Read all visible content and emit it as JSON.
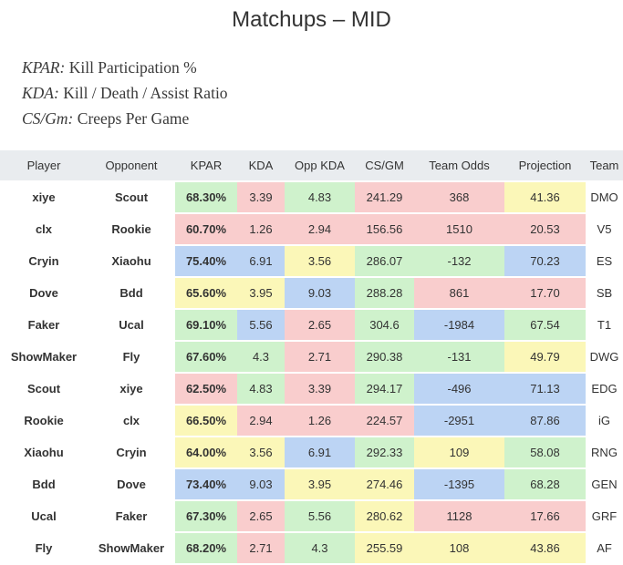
{
  "page": {
    "title": "Matchups – MID"
  },
  "legend": [
    {
      "abbr": "KPAR:",
      "text": " Kill Participation %"
    },
    {
      "abbr": "KDA:",
      "text": " Kill / Death / Assist Ratio"
    },
    {
      "abbr": "CS/Gm:",
      "text": " Creeps Per Game"
    }
  ],
  "colors": {
    "green": "#cff2cc",
    "red": "#f9cdcd",
    "yellow": "#fbf7b8",
    "blue": "#bcd4f4",
    "header": "#e9ecef"
  },
  "table": {
    "headers": [
      "Player",
      "Opponent",
      "KPAR",
      "KDA",
      "Opp KDA",
      "CS/GM",
      "Team Odds",
      "Projection",
      "Team"
    ],
    "rows": [
      {
        "player": "xiye",
        "opponent": "Scout",
        "kpar": "68.30%",
        "kda": "3.39",
        "opp_kda": "4.83",
        "csgm": "241.29",
        "team_odds": "368",
        "projection": "41.36",
        "team": "DMO",
        "colors": {
          "kpar": "green",
          "kda": "red",
          "opp_kda": "green",
          "csgm": "red",
          "team_odds": "red",
          "projection": "yellow"
        }
      },
      {
        "player": "clx",
        "opponent": "Rookie",
        "kpar": "60.70%",
        "kda": "1.26",
        "opp_kda": "2.94",
        "csgm": "156.56",
        "team_odds": "1510",
        "projection": "20.53",
        "team": "V5",
        "colors": {
          "kpar": "red",
          "kda": "red",
          "opp_kda": "red",
          "csgm": "red",
          "team_odds": "red",
          "projection": "red"
        }
      },
      {
        "player": "Cryin",
        "opponent": "Xiaohu",
        "kpar": "75.40%",
        "kda": "6.91",
        "opp_kda": "3.56",
        "csgm": "286.07",
        "team_odds": "-132",
        "projection": "70.23",
        "team": "ES",
        "colors": {
          "kpar": "blue",
          "kda": "blue",
          "opp_kda": "yellow",
          "csgm": "green",
          "team_odds": "green",
          "projection": "blue"
        }
      },
      {
        "player": "Dove",
        "opponent": "Bdd",
        "kpar": "65.60%",
        "kda": "3.95",
        "opp_kda": "9.03",
        "csgm": "288.28",
        "team_odds": "861",
        "projection": "17.70",
        "team": "SB",
        "colors": {
          "kpar": "yellow",
          "kda": "yellow",
          "opp_kda": "blue",
          "csgm": "green",
          "team_odds": "red",
          "projection": "red"
        }
      },
      {
        "player": "Faker",
        "opponent": "Ucal",
        "kpar": "69.10%",
        "kda": "5.56",
        "opp_kda": "2.65",
        "csgm": "304.6",
        "team_odds": "-1984",
        "projection": "67.54",
        "team": "T1",
        "colors": {
          "kpar": "green",
          "kda": "blue",
          "opp_kda": "red",
          "csgm": "green",
          "team_odds": "blue",
          "projection": "green"
        }
      },
      {
        "player": "ShowMaker",
        "opponent": "Fly",
        "kpar": "67.60%",
        "kda": "4.3",
        "opp_kda": "2.71",
        "csgm": "290.38",
        "team_odds": "-131",
        "projection": "49.79",
        "team": "DWG",
        "colors": {
          "kpar": "green",
          "kda": "green",
          "opp_kda": "red",
          "csgm": "green",
          "team_odds": "green",
          "projection": "yellow"
        }
      },
      {
        "player": "Scout",
        "opponent": "xiye",
        "kpar": "62.50%",
        "kda": "4.83",
        "opp_kda": "3.39",
        "csgm": "294.17",
        "team_odds": "-496",
        "projection": "71.13",
        "team": "EDG",
        "colors": {
          "kpar": "red",
          "kda": "green",
          "opp_kda": "red",
          "csgm": "green",
          "team_odds": "blue",
          "projection": "blue"
        }
      },
      {
        "player": "Rookie",
        "opponent": "clx",
        "kpar": "66.50%",
        "kda": "2.94",
        "opp_kda": "1.26",
        "csgm": "224.57",
        "team_odds": "-2951",
        "projection": "87.86",
        "team": "iG",
        "colors": {
          "kpar": "yellow",
          "kda": "red",
          "opp_kda": "red",
          "csgm": "red",
          "team_odds": "blue",
          "projection": "blue"
        }
      },
      {
        "player": "Xiaohu",
        "opponent": "Cryin",
        "kpar": "64.00%",
        "kda": "3.56",
        "opp_kda": "6.91",
        "csgm": "292.33",
        "team_odds": "109",
        "projection": "58.08",
        "team": "RNG",
        "colors": {
          "kpar": "yellow",
          "kda": "yellow",
          "opp_kda": "blue",
          "csgm": "green",
          "team_odds": "yellow",
          "projection": "green"
        }
      },
      {
        "player": "Bdd",
        "opponent": "Dove",
        "kpar": "73.40%",
        "kda": "9.03",
        "opp_kda": "3.95",
        "csgm": "274.46",
        "team_odds": "-1395",
        "projection": "68.28",
        "team": "GEN",
        "colors": {
          "kpar": "blue",
          "kda": "blue",
          "opp_kda": "yellow",
          "csgm": "yellow",
          "team_odds": "blue",
          "projection": "green"
        }
      },
      {
        "player": "Ucal",
        "opponent": "Faker",
        "kpar": "67.30%",
        "kda": "2.65",
        "opp_kda": "5.56",
        "csgm": "280.62",
        "team_odds": "1128",
        "projection": "17.66",
        "team": "GRF",
        "colors": {
          "kpar": "green",
          "kda": "red",
          "opp_kda": "green",
          "csgm": "yellow",
          "team_odds": "red",
          "projection": "red"
        }
      },
      {
        "player": "Fly",
        "opponent": "ShowMaker",
        "kpar": "68.20%",
        "kda": "2.71",
        "opp_kda": "4.3",
        "csgm": "255.59",
        "team_odds": "108",
        "projection": "43.86",
        "team": "AF",
        "colors": {
          "kpar": "green",
          "kda": "red",
          "opp_kda": "green",
          "csgm": "yellow",
          "team_odds": "yellow",
          "projection": "yellow"
        }
      }
    ]
  }
}
